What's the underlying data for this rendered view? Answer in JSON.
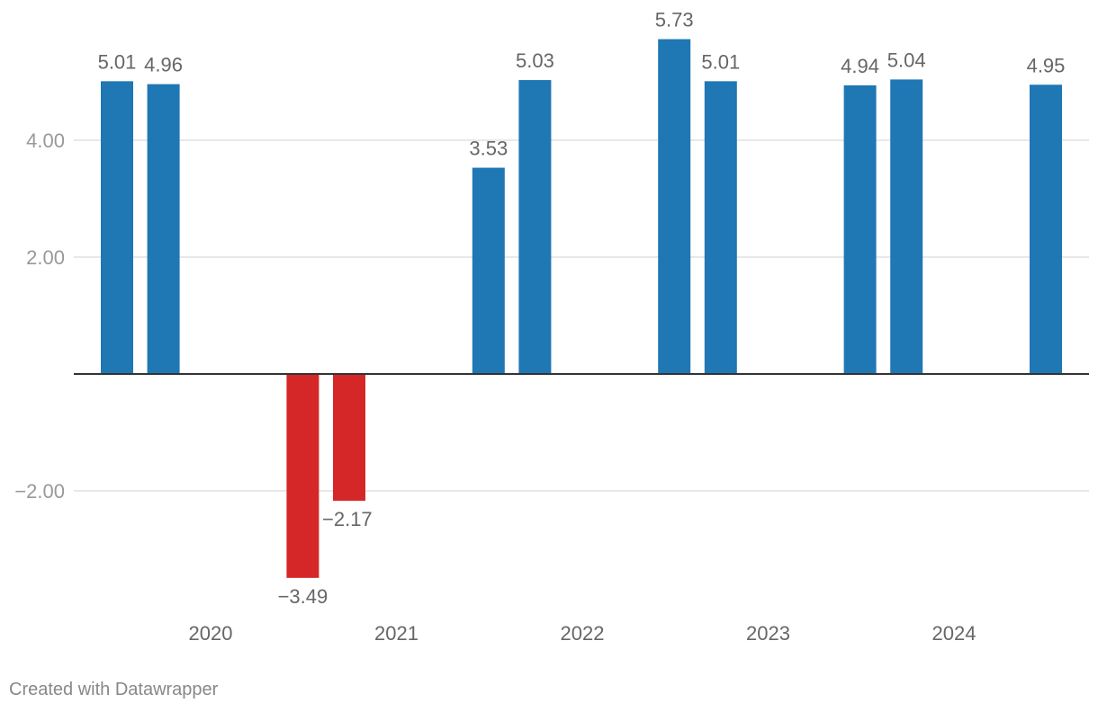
{
  "chart_data": {
    "type": "bar",
    "title": "",
    "xlabel": "",
    "ylabel": "",
    "ylim": [
      -4.0,
      6.0
    ],
    "y_ticks": [
      {
        "value": 4,
        "label": "4.00"
      },
      {
        "value": 2,
        "label": "2.00"
      },
      {
        "value": -2,
        "label": "−2.00"
      }
    ],
    "x_ticks": [
      "2020",
      "2021",
      "2022",
      "2023",
      "2024"
    ],
    "bars": [
      {
        "value": 5.01,
        "label": "5.01"
      },
      {
        "value": 4.96,
        "label": "4.96"
      },
      {
        "value": null,
        "label": ""
      },
      {
        "value": null,
        "label": ""
      },
      {
        "value": -3.49,
        "label": "−3.49"
      },
      {
        "value": -2.17,
        "label": "−2.17"
      },
      {
        "value": null,
        "label": ""
      },
      {
        "value": null,
        "label": ""
      },
      {
        "value": 3.53,
        "label": "3.53"
      },
      {
        "value": 5.03,
        "label": "5.03"
      },
      {
        "value": null,
        "label": ""
      },
      {
        "value": null,
        "label": ""
      },
      {
        "value": 5.73,
        "label": "5.73"
      },
      {
        "value": 5.01,
        "label": "5.01"
      },
      {
        "value": null,
        "label": ""
      },
      {
        "value": null,
        "label": ""
      },
      {
        "value": 4.94,
        "label": "4.94"
      },
      {
        "value": 5.04,
        "label": "5.04"
      },
      {
        "value": null,
        "label": ""
      },
      {
        "value": null,
        "label": ""
      },
      {
        "value": 4.95,
        "label": "4.95"
      }
    ],
    "colors": {
      "positive": "#1f77b4",
      "negative": "#d62728",
      "grid": "#e0e0e0",
      "baseline": "#333333"
    },
    "grid": true,
    "legend": "none"
  },
  "footer": {
    "credit": "Created with Datawrapper"
  }
}
